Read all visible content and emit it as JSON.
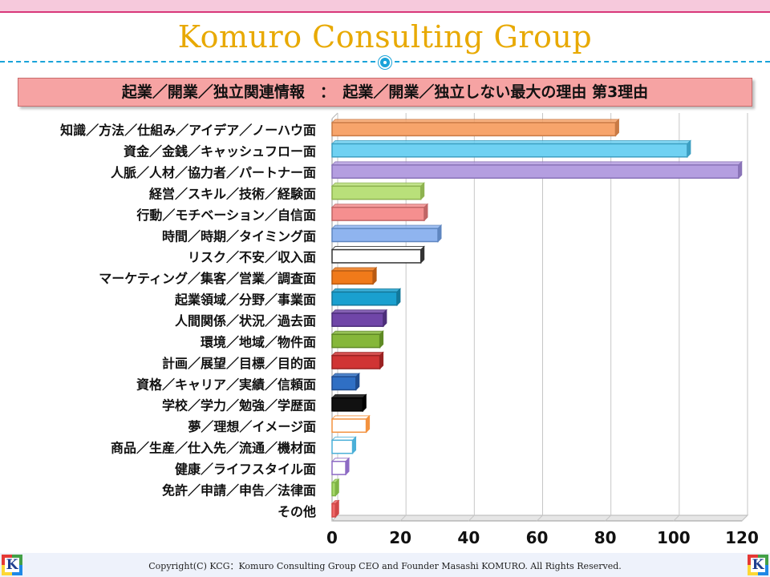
{
  "header": {
    "title": "Komuro Consulting Group",
    "subtitle": "起業／開業／独立関連情報　：　起業／開業／独立しない最大の理由 第3理由"
  },
  "footer": {
    "copyright": "Copyright(C)  KCG：Komuro Consulting Group   CEO and Founder  Masashi KOMURO. All Rights Reserved.",
    "logo_letter": "K"
  },
  "colors": {
    "title": "#e8a900",
    "divider": "#1aa3d9",
    "subtitle_bg": "#f6a3a3"
  },
  "chart_data": {
    "type": "bar",
    "orientation": "horizontal",
    "title": "",
    "xlabel": "",
    "ylabel": "",
    "xlim": [
      0,
      120
    ],
    "xticks": [
      0,
      20,
      40,
      60,
      80,
      100,
      120
    ],
    "grid": true,
    "legend": "none",
    "categories": [
      "知識／方法／仕組み／アイデア／ノーハウ面",
      "資金／金銭／キャッシュフロー面",
      "人脈／人材／協力者／パートナー面",
      "経営／スキル／技術／経験面",
      "行動／モチベーション／自信面",
      "時間／時期／タイミング面",
      "リスク／不安／収入面",
      "マーケティング／集客／営業／調査面",
      "起業領域／分野／事業面",
      "人間関係／状況／過去面",
      "環境／地域／物件面",
      "計画／展望／目標／目的面",
      "資格／キャリア／実績／信頼面",
      "学校／学力／勉強／学歴面",
      "夢／理想／イメージ面",
      "商品／生産／仕入先／流通／機材面",
      "健康／ライフスタイル面",
      "免許／申請／申告／法律面",
      "その他"
    ],
    "values": [
      83,
      104,
      119,
      26,
      27,
      31,
      26,
      12,
      19,
      15,
      14,
      14,
      7,
      9,
      10,
      6,
      4,
      1,
      1
    ],
    "bar_colors": [
      "#f7a46b",
      "#6fd1f2",
      "#b49ee0",
      "#b9e07a",
      "#f58f8f",
      "#8fb4ef",
      "#ffffff",
      "#f07a1a",
      "#1aa0cf",
      "#7046a8",
      "#86b73a",
      "#d03434",
      "#2f6fc4",
      "#111111",
      "#ffffff",
      "#ffffff",
      "#ffffff",
      "#a6d86a",
      "#f06868"
    ],
    "bar_outline_colors": [
      "#c97a45",
      "#3c9fc2",
      "#8a74b8",
      "#8eb350",
      "#c06565",
      "#5f86c0",
      "#333333",
      "#b85a12",
      "#12789b",
      "#4d2f7a",
      "#5f8a25",
      "#9a2222",
      "#1f4c8f",
      "#000000",
      "#f3923f",
      "#4bb0d8",
      "#8d6ac4",
      "#7fb445",
      "#d04848"
    ]
  }
}
